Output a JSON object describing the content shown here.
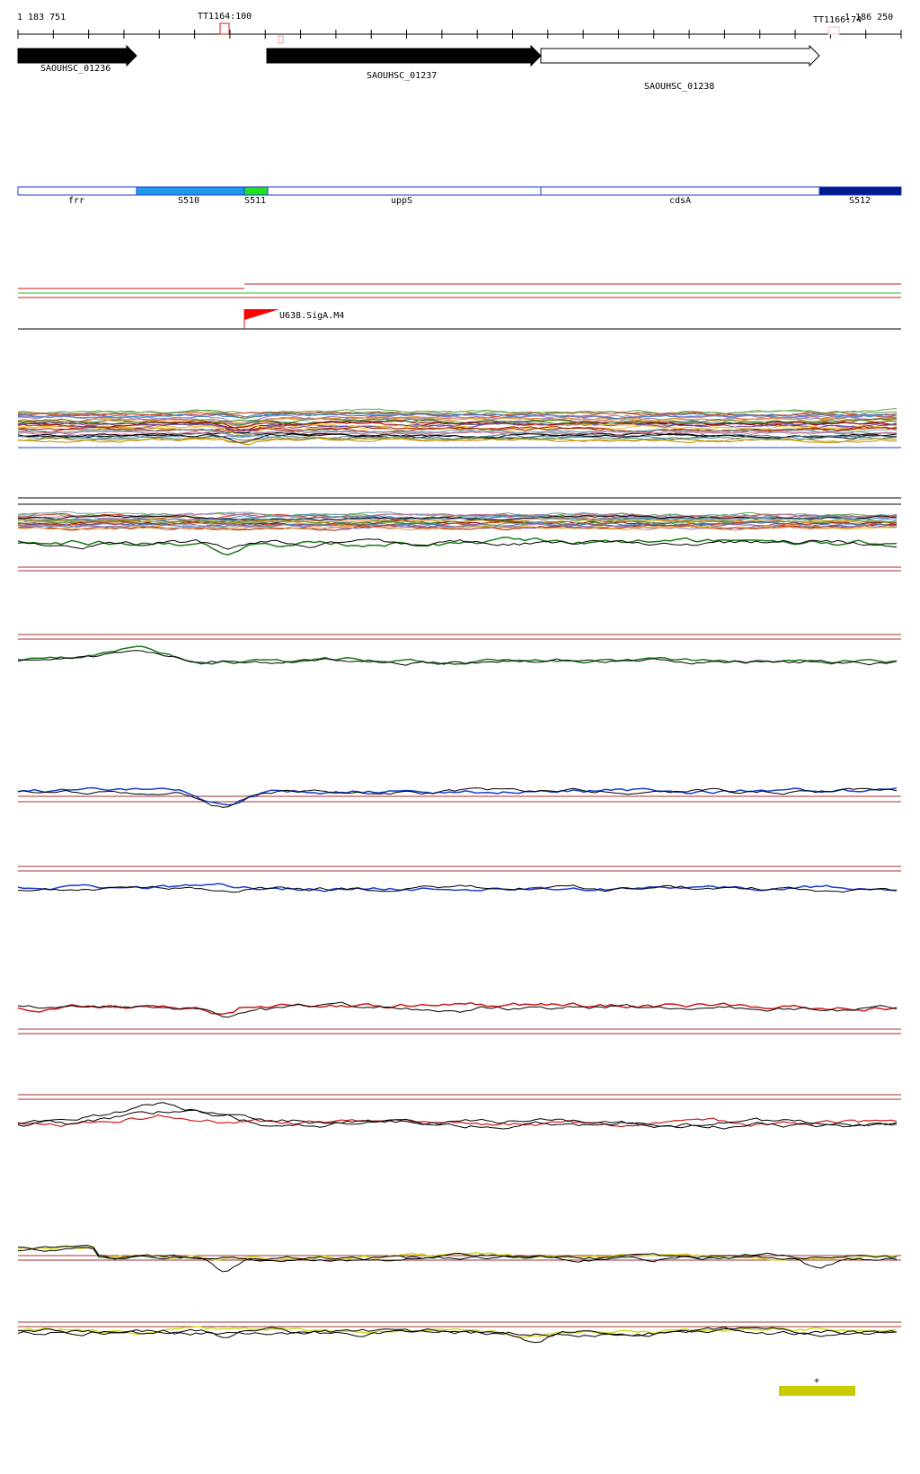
{
  "coordinates": {
    "start": "1 183 751",
    "end": "1 186 250"
  },
  "terminators": [
    {
      "label": "TT1164:100"
    },
    {
      "label": "TT1166:74"
    }
  ],
  "genes": [
    {
      "label": "SAOUHSC_01236",
      "style": "filled"
    },
    {
      "label": "SAOUHSC_01237",
      "style": "filled"
    },
    {
      "label": "SAOUHSC_01238",
      "style": "outline"
    }
  ],
  "segments": [
    {
      "label": "frr",
      "color": "#ffffff"
    },
    {
      "label": "S510",
      "color": "#1e9ae8"
    },
    {
      "label": "S511",
      "color": "#22e022"
    },
    {
      "label": "uppS",
      "color": "#ffffff"
    },
    {
      "label": "cdsA",
      "color": "#ffffff"
    },
    {
      "label": "S512",
      "color": "#001a8c"
    }
  ],
  "promoter": {
    "label": "U638.SigA.M4"
  },
  "colors": {
    "segment_outline": "#1a3ccf",
    "threshold_red": "#a03030",
    "green": "#1a7a1a",
    "blue": "#1a3ccf",
    "red": "#cc1a1a",
    "yellow": "#d8d81a",
    "legend_bar": "#c8cc00"
  },
  "legend": {
    "symbol": "+"
  }
}
